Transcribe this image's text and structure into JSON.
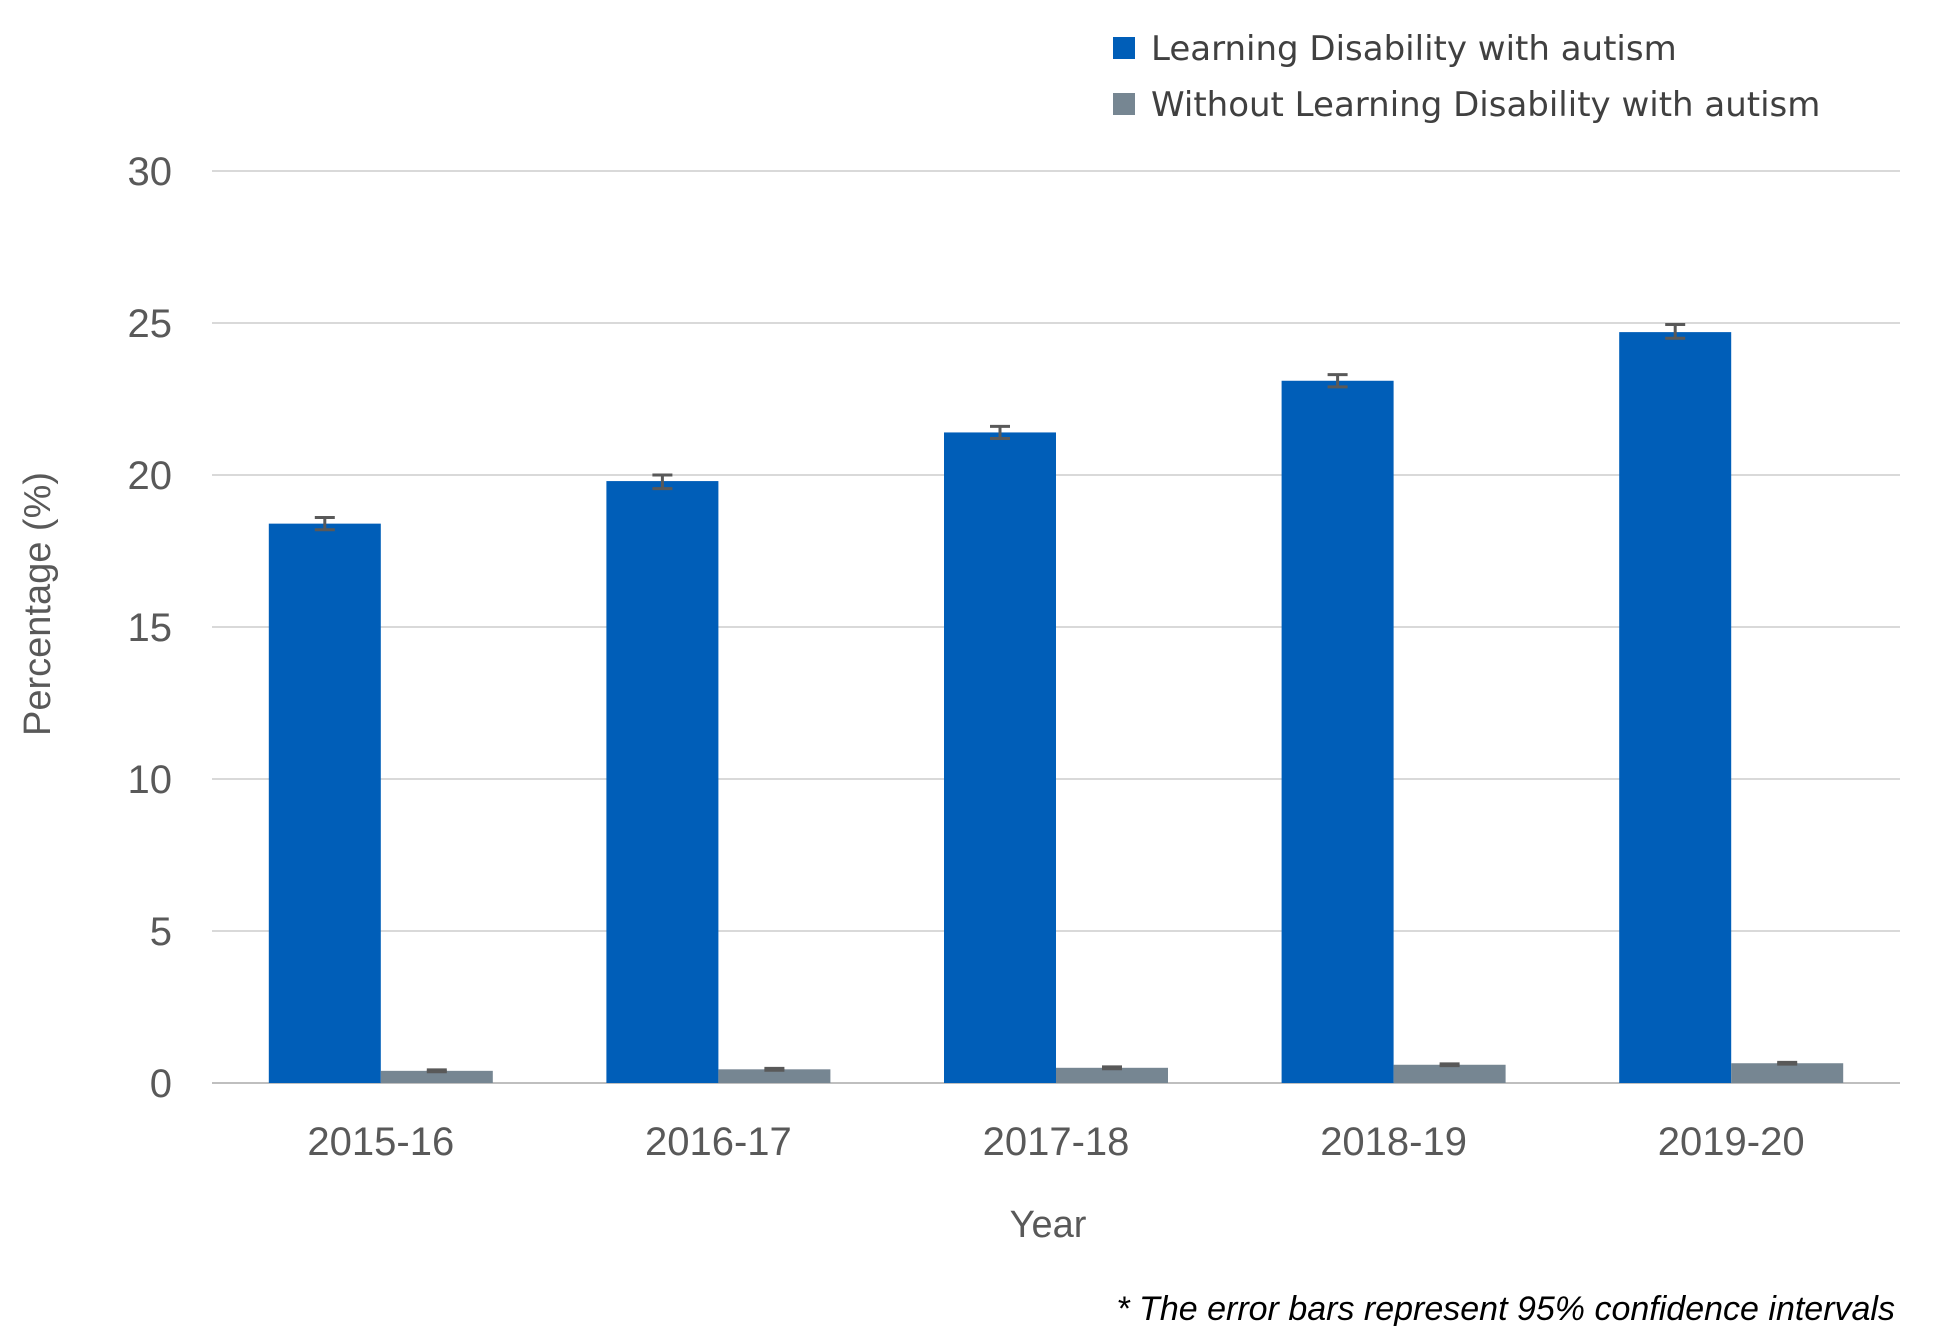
{
  "chart_data": {
    "type": "bar",
    "categories": [
      "2015-16",
      "2016-17",
      "2017-18",
      "2018-19",
      "2019-20"
    ],
    "series": [
      {
        "name": "Learning Disability with autism",
        "color": "#005EB8",
        "values": [
          18.4,
          19.8,
          21.4,
          23.1,
          24.7
        ],
        "ci_lower": [
          18.2,
          19.55,
          21.2,
          22.9,
          24.5
        ],
        "ci_upper": [
          18.6,
          20.0,
          21.6,
          23.3,
          24.95
        ]
      },
      {
        "name": "Without Learning Disability with autism",
        "color": "#768692",
        "values": [
          0.4,
          0.45,
          0.5,
          0.6,
          0.65
        ],
        "ci_lower": [
          0.37,
          0.42,
          0.47,
          0.57,
          0.62
        ],
        "ci_upper": [
          0.43,
          0.48,
          0.53,
          0.63,
          0.68
        ]
      }
    ],
    "xlabel": "Year",
    "ylabel": "Percentage (%)",
    "ylim": [
      0,
      30
    ],
    "yticks": [
      0,
      5,
      10,
      15,
      20,
      25,
      30
    ],
    "grid": true,
    "legend_position": "top-right",
    "error_bars": true,
    "error_bar_color": "#595959",
    "footnote": "* The error bars represent 95%  confidence intervals"
  }
}
